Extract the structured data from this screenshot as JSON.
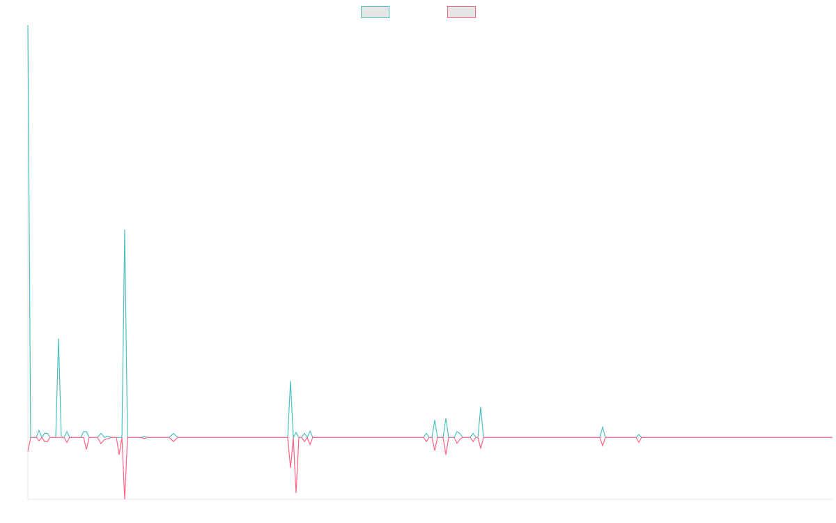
{
  "chart_data": {
    "type": "line",
    "x": [
      0,
      4,
      12,
      16,
      20,
      24,
      28,
      32,
      40,
      44,
      48,
      52,
      56,
      60,
      76,
      80,
      84,
      88,
      100,
      105,
      110,
      115,
      120,
      127,
      131,
      135,
      139,
      143,
      163,
      167,
      171,
      203,
      209,
      215,
      373,
      377,
      381,
      385,
      389,
      393,
      397,
      401,
      405,
      409,
      568,
      572,
      576,
      580,
      584,
      588,
      596,
      600,
      604,
      612,
      616,
      620,
      624,
      628,
      635,
      639,
      643,
      646,
      650,
      654,
      821,
      825,
      829,
      873,
      877,
      881,
      1155
    ],
    "series": [
      {
        "color": "#4bc0c0",
        "values": [
          100,
          0,
          0,
          1.7,
          0,
          1,
          1,
          0,
          0,
          24,
          0,
          0,
          1.4,
          0,
          0,
          1.4,
          1.4,
          0,
          0,
          1,
          0,
          0.3,
          0,
          0,
          0,
          0,
          50.4,
          0,
          0,
          0.3,
          0,
          0,
          1,
          0,
          0,
          13.7,
          0,
          1.2,
          0,
          0,
          1,
          0,
          1.5,
          0,
          0,
          1,
          0,
          0,
          4.2,
          0,
          0,
          4.6,
          0,
          0,
          1.4,
          1,
          0,
          0,
          0,
          1,
          0,
          0,
          7.4,
          0,
          0,
          2.5,
          0,
          0,
          0.7,
          0,
          0
        ]
      },
      {
        "color": "#ff6384",
        "values": [
          -3.4,
          0,
          0,
          -0.8,
          0,
          -1,
          -1,
          0,
          0,
          0,
          0,
          0,
          -1.2,
          0,
          0,
          0,
          -2.9,
          0,
          0,
          -1.5,
          -0.5,
          -0.3,
          0,
          0,
          -4.2,
          0,
          -15,
          0,
          0,
          -0.3,
          0,
          0,
          -1,
          0,
          0,
          -7.4,
          0,
          -13.5,
          0,
          0,
          -1,
          0,
          -1.7,
          0,
          0,
          -1,
          0,
          0,
          -3.2,
          0,
          0,
          -4.2,
          0,
          0,
          -1.4,
          -0.5,
          0,
          0,
          0,
          -1,
          0,
          0,
          -2.7,
          0,
          0,
          -2,
          0,
          0,
          -1.2,
          0,
          0
        ]
      }
    ],
    "xlim": [
      0,
      1155
    ],
    "ylim": [
      -15,
      100
    ]
  }
}
